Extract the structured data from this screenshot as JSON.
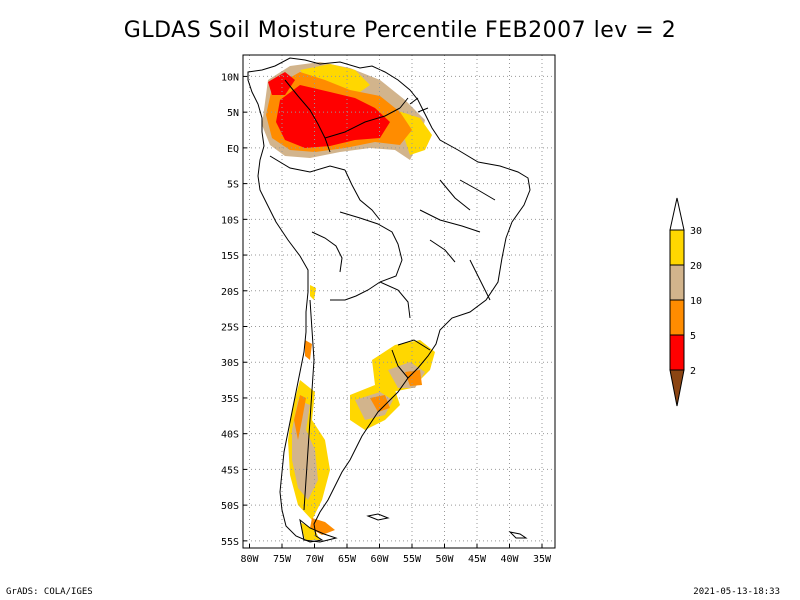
{
  "title": "GLDAS Soil Moisture Percentile FEB2007 lev = 2",
  "map": {
    "lon_labels": [
      "80W",
      "75W",
      "70W",
      "65W",
      "60W",
      "55W",
      "50W",
      "45W",
      "40W",
      "35W"
    ],
    "lat_labels": [
      "10N",
      "5N",
      "EQ",
      "5S",
      "10S",
      "15S",
      "20S",
      "25S",
      "30S",
      "35S",
      "40S",
      "45S",
      "50S",
      "55S"
    ],
    "lon_range": [
      -81,
      -33
    ],
    "lat_range": [
      -56,
      13
    ],
    "grid": true
  },
  "legend": {
    "labels": [
      "2",
      "5",
      "10",
      "20",
      "30"
    ],
    "colors": {
      "below_2": "#8b4513",
      "2_5": "#ff0000",
      "5_10": "#ff8c00",
      "10_20": "#d2b48c",
      "20_30": "#ffd700",
      "above_30": "#ffffff"
    }
  },
  "colors": {
    "coast": "#000000",
    "grid": "#999999"
  },
  "footer": {
    "left": "GrADS: COLA/IGES",
    "right": "2021-05-13-18:33"
  }
}
